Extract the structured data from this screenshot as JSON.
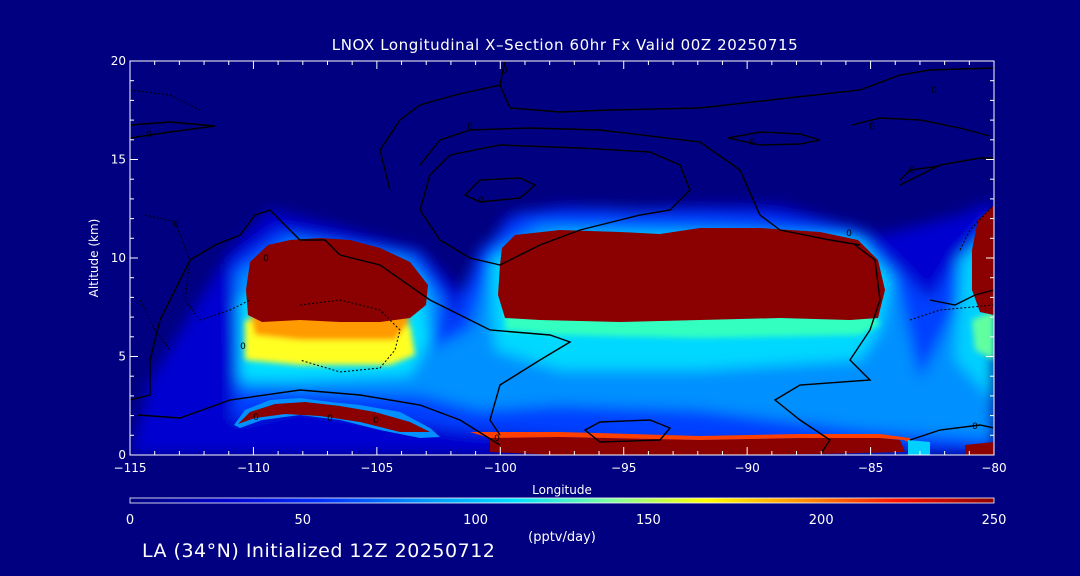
{
  "chart_data": {
    "type": "heatmap",
    "title": "LNOX Longitudinal X–Section 60hr  Fx Valid 00Z 20250715",
    "xlabel": "Longitude",
    "ylabel": "Altitude (km)",
    "xlim": [
      -115,
      -80
    ],
    "ylim": [
      0,
      20
    ],
    "x_ticks": [
      "−115",
      "−110",
      "−105",
      "−100",
      "−95",
      "−90",
      "−85",
      "−80"
    ],
    "x_tick_values": [
      -115,
      -110,
      -105,
      -100,
      -95,
      -90,
      -85,
      -80
    ],
    "y_ticks": [
      "0",
      "5",
      "10",
      "15",
      "20"
    ],
    "y_tick_values": [
      0,
      5,
      10,
      15,
      20
    ],
    "colorbar": {
      "label": "(pptv/day)",
      "range": [
        0,
        250
      ],
      "ticks": [
        "0",
        "50",
        "100",
        "150",
        "200",
        "250"
      ],
      "tick_values": [
        0,
        50,
        100,
        150,
        200,
        250
      ],
      "colors": [
        "#000080",
        "#0000cd",
        "#0030ff",
        "#0090ff",
        "#00e0ff",
        "#7fffa0",
        "#ffff00",
        "#ff9000",
        "#ff1000",
        "#8b0000"
      ]
    },
    "features": [
      {
        "name": "lightning-core-west",
        "lon": [
          -111,
          -102.7
        ],
        "alt": [
          6.5,
          11
        ],
        "value": 250
      },
      {
        "name": "lightning-core-central",
        "lon": [
          -100.5,
          -84.5
        ],
        "alt": [
          6.5,
          11.5
        ],
        "value": 250
      },
      {
        "name": "lightning-core-east",
        "lon": [
          -80.7,
          -80
        ],
        "alt": [
          7,
          12.5
        ],
        "value": 250
      },
      {
        "name": "low-level-band-west",
        "lon": [
          -111,
          -103
        ],
        "alt": [
          0.9,
          2.6
        ],
        "value": 250
      },
      {
        "name": "surface-band-central",
        "lon": [
          -100,
          -84
        ],
        "alt": [
          0.5,
          1.1
        ],
        "value": 240
      }
    ],
    "contour_labels": [
      "0",
      "0",
      "0",
      "0",
      "0",
      "0",
      "0",
      "0",
      "0",
      "0",
      "0",
      "0",
      "0",
      "0",
      "0",
      "0",
      "0"
    ]
  },
  "footer": {
    "text": "LA (34°N) Initialized 12Z 20250712"
  }
}
